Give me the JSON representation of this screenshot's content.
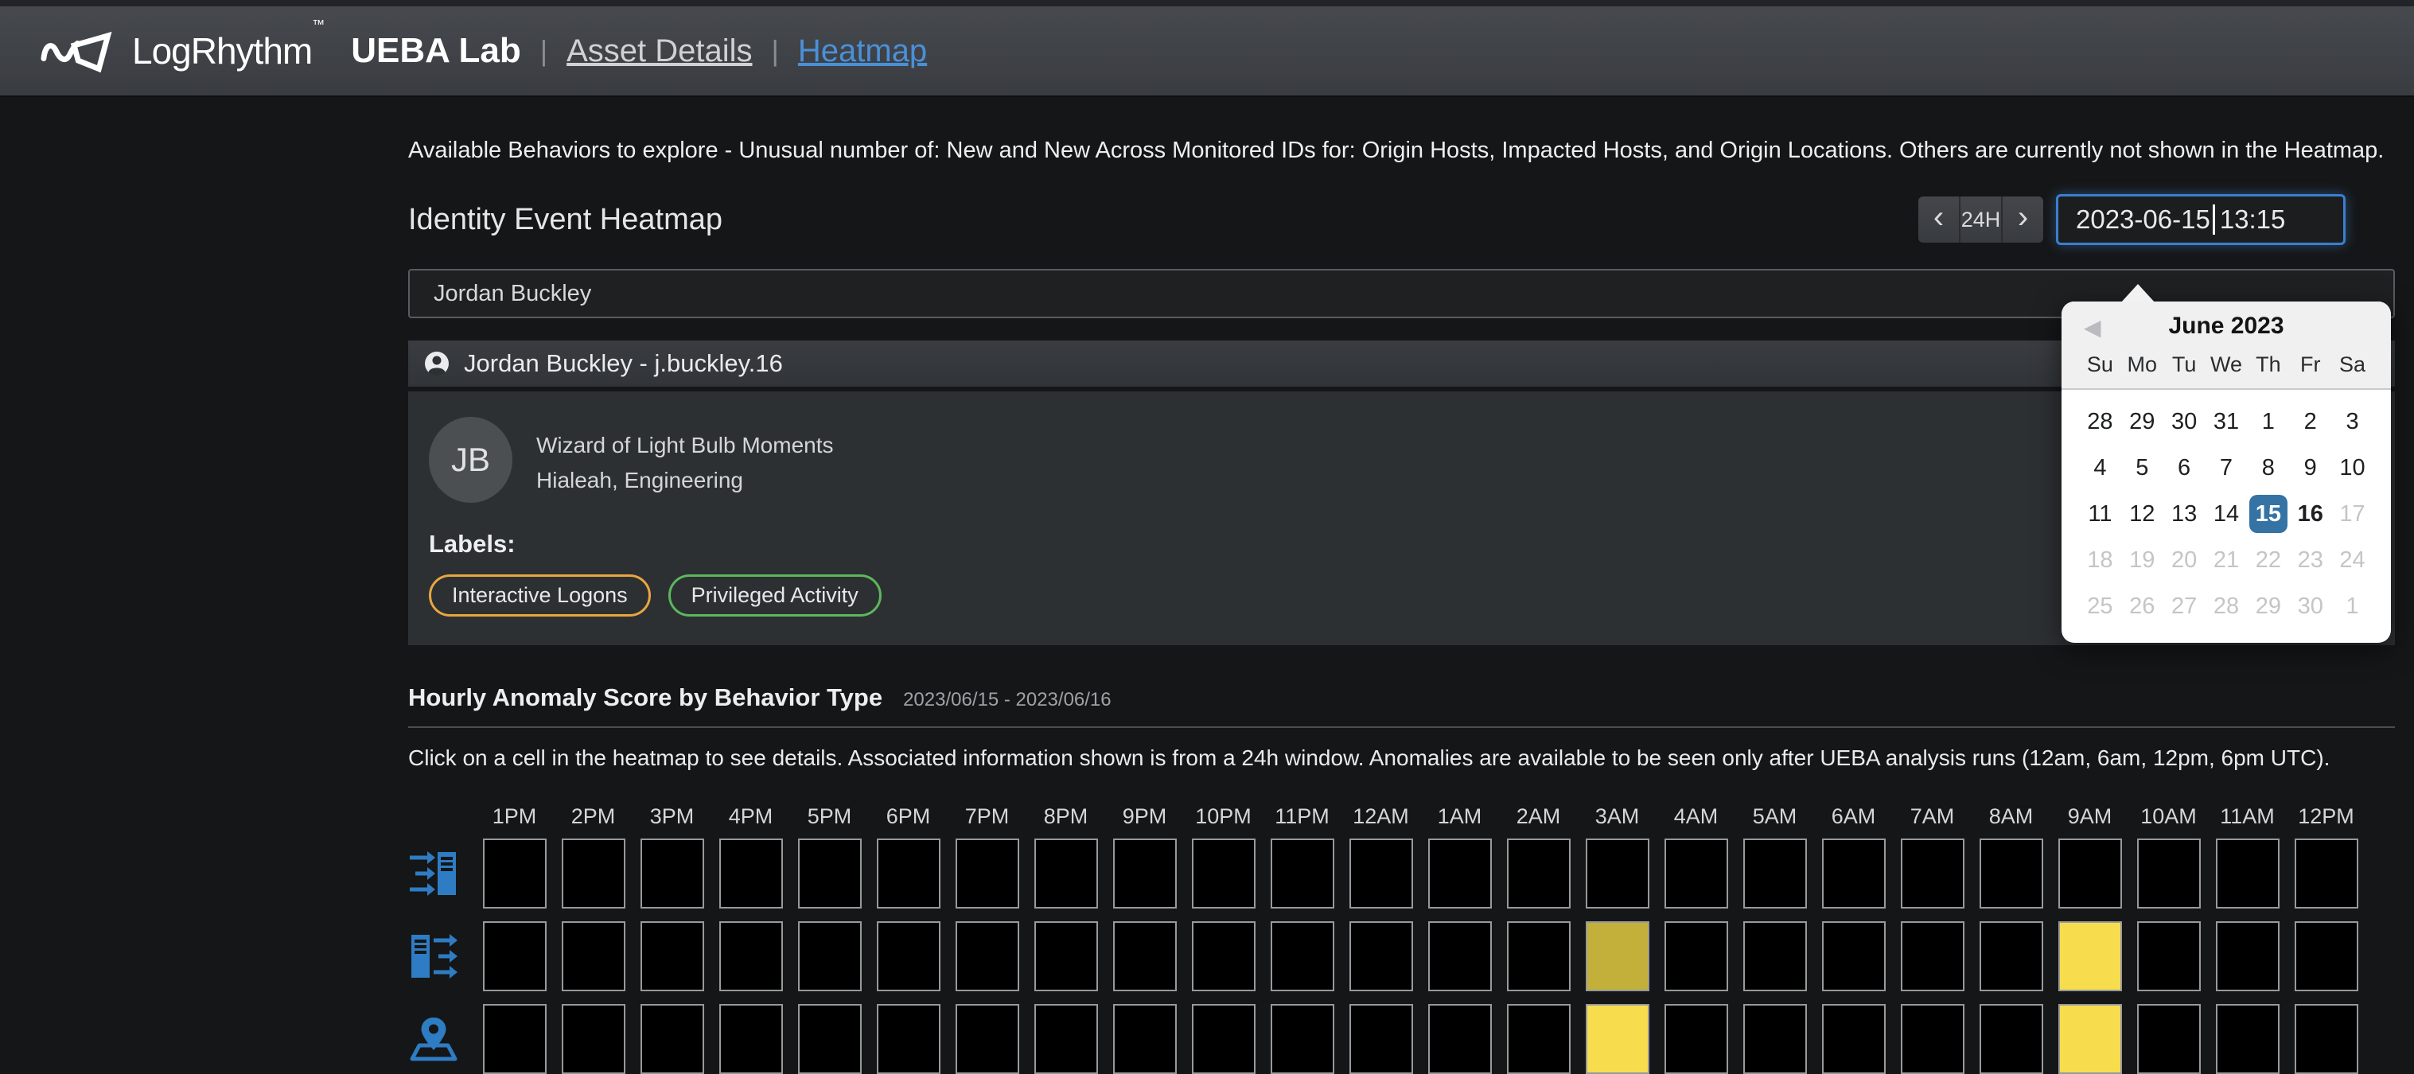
{
  "topbar": {
    "brand": "LogRhythm",
    "brand_tm": "™",
    "app_title": "UEBA Lab",
    "separator": "|",
    "nav": [
      {
        "label": "Asset Details",
        "active": false
      },
      {
        "label": "Heatmap",
        "active": true
      }
    ]
  },
  "intro": "Available Behaviors to explore - Unusual number of: New and New Across Monitored IDs for: Origin Hosts, Impacted Hosts, and Origin Locations. Others are currently not shown in the Heatmap.",
  "page": {
    "title": "Identity Event Heatmap"
  },
  "time_controls": {
    "prev_label": "‹",
    "range_label": "24H",
    "next_label": "›",
    "date_part": "2023-06-15",
    "time_part": "13:15",
    "datetime_value": "2023-06-15 13:15",
    "focus_border_color": "#3b7fd0"
  },
  "user_select": {
    "value": "Jordan Buckley"
  },
  "user_header": {
    "title": "Jordan Buckley - j.buckley.16"
  },
  "profile": {
    "initials": "JB",
    "role": "Wizard of Light Bulb Moments",
    "location": "Hialeah, Engineering",
    "labels_title": "Labels:",
    "labels": [
      {
        "text": "Interactive Logons",
        "color": "#e9a63f"
      },
      {
        "text": "Privileged Activity",
        "color": "#5cb75e"
      }
    ]
  },
  "heatmap": {
    "title": "Hourly Anomaly Score by Behavior Type",
    "date_range": "2023/06/15 - 2023/06/16",
    "instruction": "Click on a cell in the heatmap to see details. Associated information shown is from a 24h window. Anomalies are available to be seen only after UEBA analysis runs (12am, 6am, 12pm, 6pm UTC).",
    "times": [
      "1PM",
      "2PM",
      "3PM",
      "4PM",
      "5PM",
      "6PM",
      "7PM",
      "8PM",
      "9PM",
      "10PM",
      "11PM",
      "12AM",
      "1AM",
      "2AM",
      "3AM",
      "4AM",
      "5AM",
      "6AM",
      "7AM",
      "8AM",
      "9AM",
      "10AM",
      "11AM",
      "12PM"
    ],
    "palette": {
      "empty": "#000000",
      "medium": "#c2b03b",
      "high": "#f7dd4e"
    },
    "cell_border_color": "#97999b",
    "row_icon_color": "#2e7cc3",
    "rows": [
      {
        "id": "impacted-hosts",
        "icon": "arrows-into-server-icon",
        "anomalies": {}
      },
      {
        "id": "origin-hosts",
        "icon": "server-arrows-out-icon",
        "anomalies": {
          "3AM": "medium",
          "9AM": "high"
        }
      },
      {
        "id": "origin-locations",
        "icon": "map-pin-icon",
        "anomalies": {
          "3AM": "high",
          "9AM": "high"
        }
      }
    ]
  },
  "calendar": {
    "prev_arrow": "◀",
    "title": "June 2023",
    "weekdays": [
      "Su",
      "Mo",
      "Tu",
      "We",
      "Th",
      "Fr",
      "Sa"
    ],
    "selected_color": "#3573a5",
    "weeks": [
      [
        {
          "d": "28",
          "s": "normal"
        },
        {
          "d": "29",
          "s": "normal"
        },
        {
          "d": "30",
          "s": "normal"
        },
        {
          "d": "31",
          "s": "normal"
        },
        {
          "d": "1",
          "s": "normal"
        },
        {
          "d": "2",
          "s": "normal"
        },
        {
          "d": "3",
          "s": "normal"
        }
      ],
      [
        {
          "d": "4",
          "s": "normal"
        },
        {
          "d": "5",
          "s": "normal"
        },
        {
          "d": "6",
          "s": "normal"
        },
        {
          "d": "7",
          "s": "normal"
        },
        {
          "d": "8",
          "s": "normal"
        },
        {
          "d": "9",
          "s": "normal"
        },
        {
          "d": "10",
          "s": "normal"
        }
      ],
      [
        {
          "d": "11",
          "s": "normal"
        },
        {
          "d": "12",
          "s": "normal"
        },
        {
          "d": "13",
          "s": "normal"
        },
        {
          "d": "14",
          "s": "normal"
        },
        {
          "d": "15",
          "s": "selected"
        },
        {
          "d": "16",
          "s": "today"
        },
        {
          "d": "17",
          "s": "muted"
        }
      ],
      [
        {
          "d": "18",
          "s": "muted"
        },
        {
          "d": "19",
          "s": "muted"
        },
        {
          "d": "20",
          "s": "muted"
        },
        {
          "d": "21",
          "s": "muted"
        },
        {
          "d": "22",
          "s": "muted"
        },
        {
          "d": "23",
          "s": "muted"
        },
        {
          "d": "24",
          "s": "muted"
        }
      ],
      [
        {
          "d": "25",
          "s": "muted"
        },
        {
          "d": "26",
          "s": "muted"
        },
        {
          "d": "27",
          "s": "muted"
        },
        {
          "d": "28",
          "s": "muted"
        },
        {
          "d": "29",
          "s": "muted"
        },
        {
          "d": "30",
          "s": "muted"
        },
        {
          "d": "1",
          "s": "muted"
        }
      ]
    ]
  }
}
